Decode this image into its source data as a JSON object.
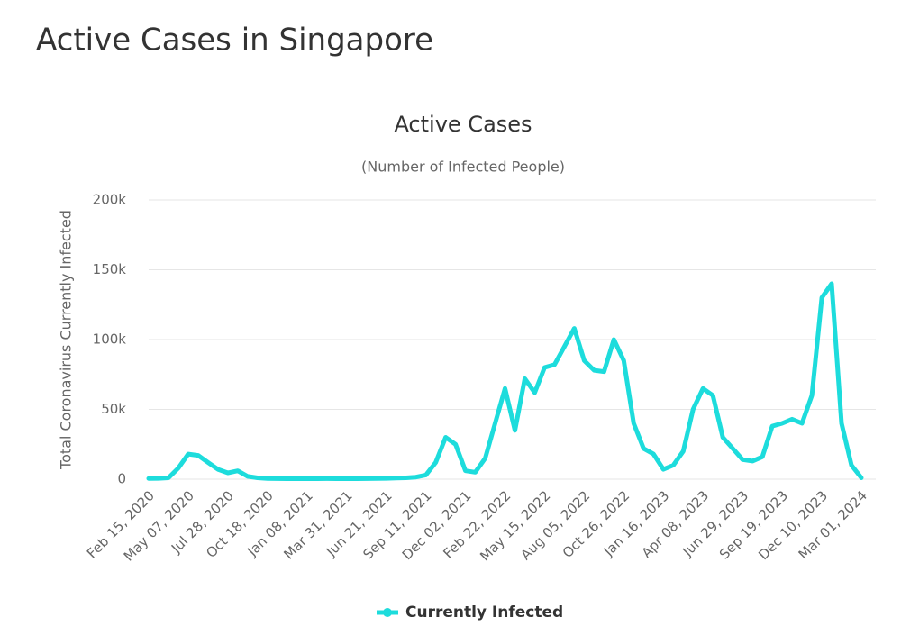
{
  "page_title": "Active Cases in Singapore",
  "chart_data": {
    "type": "line",
    "title": "Active Cases",
    "subtitle": "(Number of Infected People)",
    "y_label": "Total Coronavirus Currently Infected",
    "categories": [
      "Feb 15, 2020",
      null,
      null,
      null,
      "May 07, 2020",
      null,
      null,
      null,
      "Jul 28, 2020",
      null,
      null,
      null,
      "Oct 18, 2020",
      null,
      null,
      null,
      "Jan 08, 2021",
      null,
      null,
      null,
      "Mar 31, 2021",
      null,
      null,
      null,
      "Jun 21, 2021",
      null,
      null,
      null,
      "Sep 11, 2021",
      null,
      null,
      null,
      "Dec 02, 2021",
      null,
      null,
      null,
      "Feb 22, 2022",
      null,
      null,
      null,
      "May 15, 2022",
      null,
      null,
      null,
      "Aug 05, 2022",
      null,
      null,
      null,
      "Oct 26, 2022",
      null,
      null,
      null,
      "Jan 16, 2023",
      null,
      null,
      null,
      "Apr 08, 2023",
      null,
      null,
      null,
      "Jun 29, 2023",
      null,
      null,
      null,
      "Sep 19, 2023",
      null,
      null,
      null,
      "Dec 10, 2023",
      null,
      null,
      null,
      "Mar 01, 2024"
    ],
    "series": [
      {
        "name": "Currently Infected",
        "color": "#1ddcdc",
        "values": [
          500,
          600,
          1000,
          8000,
          18000,
          17000,
          12000,
          7000,
          4500,
          6000,
          2000,
          1000,
          500,
          400,
          300,
          300,
          300,
          300,
          400,
          300,
          300,
          300,
          400,
          500,
          600,
          800,
          1000,
          1500,
          3000,
          12000,
          30000,
          25000,
          6000,
          5000,
          15000,
          40000,
          65000,
          35000,
          72000,
          62000,
          80000,
          82000,
          95000,
          108000,
          85000,
          78000,
          77000,
          100000,
          85000,
          40000,
          22000,
          18000,
          7000,
          10000,
          20000,
          50000,
          65000,
          60000,
          30000,
          22000,
          14000,
          13000,
          16000,
          38000,
          40000,
          43000,
          40000,
          60000,
          130000,
          140000,
          40000,
          10000,
          1000
        ]
      }
    ],
    "ylim": [
      0,
      200000
    ],
    "yticks": [
      0,
      {
        "value": 50000,
        "label": "50k"
      },
      {
        "value": 100000,
        "label": "100k"
      },
      {
        "value": 150000,
        "label": "150k"
      },
      {
        "value": 200000,
        "label": "200k"
      }
    ],
    "grid": true,
    "legend": "bottom"
  }
}
